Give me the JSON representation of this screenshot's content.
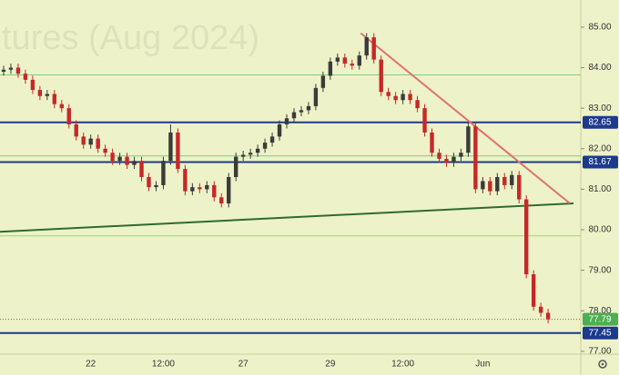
{
  "chart_data": {
    "type": "candlestick",
    "watermark": "tures (Aug 2024)",
    "categories": [
      null,
      null,
      null,
      null,
      null,
      null,
      null,
      null,
      null,
      null,
      null,
      null,
      "22",
      null,
      null,
      null,
      null,
      null,
      null,
      null,
      null,
      null,
      "12:00",
      null,
      null,
      null,
      null,
      null,
      null,
      null,
      null,
      null,
      null,
      "27",
      null,
      null,
      null,
      null,
      null,
      null,
      null,
      null,
      null,
      null,
      null,
      "29",
      null,
      null,
      null,
      null,
      null,
      null,
      null,
      null,
      null,
      "12:00",
      null,
      null,
      null,
      null,
      null,
      null,
      null,
      null,
      null,
      null,
      "Jun",
      null,
      null,
      null,
      null,
      null,
      null,
      null,
      null,
      null
    ],
    "open": [
      83.9,
      83.95,
      84.0,
      83.85,
      83.7,
      83.45,
      83.3,
      83.35,
      83.1,
      83.0,
      82.6,
      82.3,
      82.1,
      82.25,
      82.0,
      81.9,
      81.7,
      81.8,
      81.6,
      81.7,
      81.3,
      81.05,
      81.1,
      81.7,
      82.4,
      81.5,
      80.95,
      81.05,
      81.0,
      81.1,
      80.8,
      80.65,
      81.3,
      81.8,
      81.85,
      81.9,
      82.0,
      82.15,
      82.3,
      82.6,
      82.75,
      82.9,
      82.95,
      83.05,
      83.5,
      83.8,
      84.15,
      84.25,
      84.1,
      84.05,
      84.3,
      84.75,
      84.2,
      83.4,
      83.3,
      83.2,
      83.35,
      83.2,
      83.0,
      82.4,
      81.9,
      81.75,
      81.65,
      81.8,
      81.9,
      82.55,
      81.0,
      81.2,
      80.95,
      81.3,
      81.1,
      81.35,
      80.75,
      78.9,
      78.1,
      77.95
    ],
    "high": [
      84.05,
      84.1,
      84.1,
      83.95,
      83.8,
      83.55,
      83.45,
      83.45,
      83.2,
      83.1,
      82.7,
      82.4,
      82.35,
      82.35,
      82.1,
      82.0,
      81.9,
      81.9,
      81.8,
      81.8,
      81.4,
      81.2,
      81.8,
      82.6,
      82.5,
      81.6,
      81.15,
      81.15,
      81.2,
      81.2,
      80.9,
      81.4,
      81.9,
      81.95,
      82.0,
      82.1,
      82.25,
      82.4,
      82.7,
      82.85,
      83.0,
      83.05,
      83.15,
      83.6,
      83.9,
      84.25,
      84.35,
      84.35,
      84.2,
      84.4,
      84.85,
      84.85,
      84.3,
      83.5,
      83.4,
      83.45,
      83.45,
      83.3,
      83.1,
      82.5,
      82.0,
      81.85,
      81.9,
      82.0,
      82.65,
      82.65,
      81.3,
      81.3,
      81.4,
      81.4,
      81.45,
      81.45,
      80.85,
      79.0,
      78.2,
      78.05
    ],
    "low": [
      83.8,
      83.85,
      83.75,
      83.6,
      83.35,
      83.2,
      83.2,
      83.0,
      82.9,
      82.5,
      82.2,
      82.0,
      82.0,
      81.9,
      81.8,
      81.6,
      81.6,
      81.5,
      81.5,
      81.2,
      80.95,
      80.95,
      81.0,
      81.6,
      81.4,
      80.85,
      80.85,
      80.9,
      80.9,
      80.7,
      80.55,
      80.55,
      81.2,
      81.7,
      81.75,
      81.8,
      81.9,
      82.05,
      82.2,
      82.5,
      82.65,
      82.8,
      82.85,
      82.95,
      83.4,
      83.7,
      84.05,
      84.0,
      83.95,
      83.95,
      84.2,
      84.1,
      83.3,
      83.2,
      83.1,
      83.1,
      83.1,
      82.9,
      82.3,
      81.8,
      81.65,
      81.55,
      81.55,
      81.7,
      81.8,
      80.9,
      80.9,
      80.85,
      80.85,
      81.0,
      81.0,
      80.65,
      78.8,
      78.0,
      77.85,
      77.69
    ],
    "close": [
      83.95,
      84.0,
      83.85,
      83.7,
      83.45,
      83.3,
      83.35,
      83.1,
      83.0,
      82.6,
      82.3,
      82.1,
      82.25,
      82.0,
      81.9,
      81.7,
      81.8,
      81.6,
      81.7,
      81.3,
      81.05,
      81.1,
      81.7,
      82.4,
      81.5,
      80.95,
      81.05,
      81.0,
      81.1,
      80.8,
      80.65,
      81.3,
      81.8,
      81.85,
      81.9,
      82.0,
      82.15,
      82.3,
      82.6,
      82.75,
      82.9,
      82.95,
      83.05,
      83.5,
      83.8,
      84.15,
      84.25,
      84.1,
      84.05,
      84.3,
      84.75,
      84.2,
      83.4,
      83.3,
      83.2,
      83.35,
      83.2,
      83.0,
      82.4,
      81.9,
      81.75,
      81.65,
      81.8,
      81.9,
      82.55,
      81.0,
      81.2,
      80.95,
      81.3,
      81.1,
      81.35,
      80.75,
      78.9,
      78.1,
      77.95,
      77.79
    ],
    "up_color": "#3b3b3b",
    "down_color": "#c62828",
    "xlim": [
      -0.5,
      79.5
    ],
    "ylim": [
      76.93,
      85.67
    ],
    "yticks": [
      {
        "value": 77,
        "label": "77.00"
      },
      {
        "value": 78,
        "label": "78.00"
      },
      {
        "value": 79,
        "label": "79.00"
      },
      {
        "value": 80,
        "label": "80.00"
      },
      {
        "value": 81,
        "label": "81.00"
      },
      {
        "value": 82,
        "label": "82.00"
      },
      {
        "value": 83,
        "label": "83.00"
      },
      {
        "value": 84,
        "label": "84.00"
      },
      {
        "value": 85,
        "label": "85.00"
      }
    ],
    "guides": [
      {
        "value": 83.82,
        "color": "#7ccf7c"
      },
      {
        "value": 81.82,
        "color": "#7ccf7c"
      },
      {
        "value": 79.85,
        "color": "#9ed36a"
      }
    ],
    "levels": [
      {
        "value": 82.65,
        "label": "82.65",
        "color": "#1c3a8e"
      },
      {
        "value": 81.67,
        "label": "81.67",
        "color": "#1c3a8e"
      },
      {
        "value": 77.45,
        "label": "77.45",
        "color": "#1c3a8e"
      }
    ],
    "last_price": {
      "value": 77.79,
      "label": "77.79",
      "color": "#4caf50"
    },
    "trendlines": [
      {
        "start": [
          -0.5,
          79.95
        ],
        "end": [
          78.5,
          80.65
        ],
        "color": "#2e6b2e"
      },
      {
        "start": [
          49.2,
          84.85
        ],
        "end": [
          78.0,
          80.65
        ],
        "color": "#e07070"
      }
    ]
  }
}
